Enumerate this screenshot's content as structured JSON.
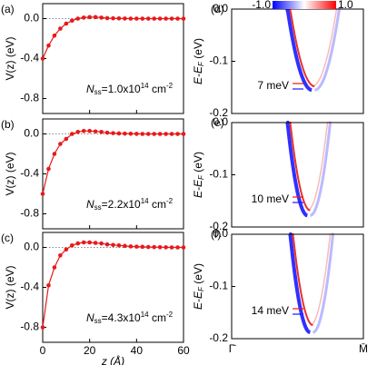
{
  "chart_data": [
    {
      "type": "line",
      "label": "(a)",
      "ylabel": "V(z) (eV)",
      "annotation": [
        "N",
        "ss",
        "=1.0x10",
        "14",
        " cm",
        "-2"
      ],
      "color": "#e8191a",
      "x": [
        0,
        2.5,
        5,
        7.5,
        10,
        12.5,
        15,
        17.5,
        20,
        22.5,
        25,
        27.5,
        30,
        32.5,
        35,
        37.5,
        40,
        42.5,
        45,
        47.5,
        50,
        52.5,
        55,
        57.5,
        60
      ],
      "values": [
        -0.4,
        -0.27,
        -0.17,
        -0.1,
        -0.05,
        -0.02,
        0.0,
        0.01,
        0.015,
        0.015,
        0.01,
        0.005,
        0.003,
        0.002,
        0.001,
        0,
        0,
        0,
        0,
        0,
        0,
        0,
        0,
        0,
        0
      ],
      "xlim": [
        0,
        60
      ],
      "ylim": [
        -0.95,
        0.15
      ],
      "xticks": [
        0,
        20,
        40,
        60
      ],
      "yticks": [
        {
          "value": 0,
          "label": "0.0"
        },
        {
          "value": -0.4,
          "label": "-0.4"
        },
        {
          "value": -0.8,
          "label": "-0.8"
        }
      ]
    },
    {
      "type": "line",
      "label": "(b)",
      "ylabel": "V(z) (eV)",
      "annotation": [
        "N",
        "ss",
        "=2.2x10",
        "14",
        " cm",
        "-2"
      ],
      "color": "#e8191a",
      "x": [
        0,
        2.5,
        5,
        7.5,
        10,
        12.5,
        15,
        17.5,
        20,
        22.5,
        25,
        27.5,
        30,
        32.5,
        35,
        37.5,
        40,
        42.5,
        45,
        47.5,
        50,
        52.5,
        55,
        57.5,
        60
      ],
      "values": [
        -0.6,
        -0.35,
        -0.2,
        -0.1,
        -0.05,
        0.0,
        0.02,
        0.03,
        0.03,
        0.025,
        0.02,
        0.012,
        0.008,
        0.005,
        0.003,
        0.002,
        0.001,
        0,
        0,
        0,
        0,
        0,
        0,
        0,
        0
      ],
      "xlim": [
        0,
        60
      ],
      "ylim": [
        -0.95,
        0.15
      ],
      "xticks": [
        0,
        20,
        40,
        60
      ],
      "yticks": [
        {
          "value": 0,
          "label": "0.0"
        },
        {
          "value": -0.4,
          "label": "-0.4"
        },
        {
          "value": -0.8,
          "label": "-0.8"
        }
      ]
    },
    {
      "type": "line",
      "label": "(c)",
      "ylabel": "V(z) (eV)",
      "annotation": [
        "N",
        "ss",
        "=4.3x10",
        "14",
        " cm",
        "-2"
      ],
      "color": "#e8191a",
      "xlabel": "z (Å)",
      "x": [
        0,
        2.5,
        5,
        7.5,
        10,
        12.5,
        15,
        17.5,
        20,
        22.5,
        25,
        27.5,
        30,
        32.5,
        35,
        37.5,
        40,
        42.5,
        45,
        47.5,
        50,
        52.5,
        55,
        57.5,
        60
      ],
      "values": [
        -0.8,
        -0.38,
        -0.2,
        -0.08,
        -0.02,
        0.02,
        0.04,
        0.05,
        0.05,
        0.045,
        0.04,
        0.03,
        0.025,
        0.02,
        0.015,
        0.01,
        0.008,
        0.006,
        0.004,
        0.003,
        0.002,
        0.001,
        0,
        0,
        0
      ],
      "xlim": [
        0,
        60
      ],
      "ylim": [
        -0.95,
        0.15
      ],
      "xticks": [
        0,
        20,
        40,
        60
      ],
      "yticks": [
        {
          "value": 0,
          "label": "0.0"
        },
        {
          "value": -0.4,
          "label": "-0.4"
        },
        {
          "value": -0.8,
          "label": "-0.8"
        }
      ]
    },
    {
      "type": "band",
      "label": "(d)",
      "ylabel": [
        "E-E",
        "F",
        " (eV)"
      ],
      "annotation": "7 meV",
      "ylim": [
        -0.2,
        0
      ],
      "yticks": [
        {
          "value": 0,
          "label": "0.0"
        },
        {
          "value": -0.1,
          "label": "-0.1"
        },
        {
          "value": -0.2,
          "label": "-0.2"
        }
      ],
      "series": [
        {
          "color": "#1a1aff",
          "bottom": -0.155
        },
        {
          "color": "#e8191a",
          "bottom": -0.148
        }
      ],
      "colorbar": {
        "ticks": [
          {
            "value": -1,
            "label": "-1.0"
          },
          {
            "value": 1,
            "label": "1.0"
          }
        ]
      }
    },
    {
      "type": "band",
      "label": "(e)",
      "ylabel": [
        "E-E",
        "F",
        " (eV)"
      ],
      "annotation": "10 meV",
      "ylim": [
        -0.2,
        0
      ],
      "yticks": [
        {
          "value": 0,
          "label": "0.0"
        },
        {
          "value": -0.1,
          "label": "-0.1"
        },
        {
          "value": -0.2,
          "label": "-0.2"
        }
      ],
      "series": [
        {
          "color": "#1a1aff",
          "bottom": -0.178
        },
        {
          "color": "#e8191a",
          "bottom": -0.168
        }
      ]
    },
    {
      "type": "band",
      "label": "(f)",
      "ylabel": [
        "E-E",
        "F",
        " (eV)"
      ],
      "annotation": "14 meV",
      "ylim": [
        -0.2,
        0
      ],
      "yticks": [
        {
          "value": 0,
          "label": "0.0"
        },
        {
          "value": -0.1,
          "label": "-0.1"
        },
        {
          "value": -0.2,
          "label": "-0.2"
        }
      ],
      "series": [
        {
          "color": "#1a1aff",
          "bottom": -0.188
        },
        {
          "color": "#e8191a",
          "bottom": -0.174
        }
      ],
      "categories": [
        "Γ̄",
        "M̄"
      ]
    }
  ]
}
